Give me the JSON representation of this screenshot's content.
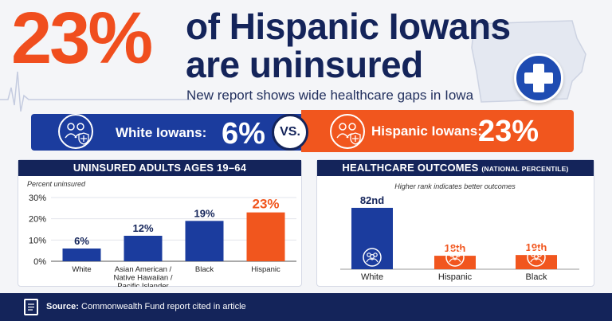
{
  "header": {
    "big_pct": "23%",
    "headline_line1": "of Hispanic Iowans",
    "headline_line2": "are uninsured",
    "subhead": "New report shows wide healthcare gaps in Iowa"
  },
  "comparison": {
    "white_label": "White Iowans:",
    "white_value": "6%",
    "vs": "VS.",
    "hispanic_label": "Hispanic Iowans:",
    "hispanic_value": "23%"
  },
  "colors": {
    "navy": "#14245a",
    "blue": "#1b3c9e",
    "orange": "#f1561e",
    "headline_orange": "#f04e1e"
  },
  "icons": [
    "heartbeat-icon",
    "iowa-map-icon",
    "medical-cross-icon",
    "people-shield-icon",
    "people-group-icon",
    "document-icon"
  ],
  "chart_data": [
    {
      "type": "bar",
      "title": "UNINSURED ADULTS AGES 19–64",
      "ylabel": "Percent uninsured",
      "categories": [
        "White",
        "Asian American / Native Hawaiian / Pacific Islander",
        "Black",
        "Hispanic"
      ],
      "category_lines": [
        [
          "White"
        ],
        [
          "Asian American /",
          "Native Hawaiian /",
          "Pacific Islander"
        ],
        [
          "Black"
        ],
        [
          "Hispanic"
        ]
      ],
      "values": [
        6,
        12,
        19,
        23
      ],
      "value_labels": [
        "6%",
        "12%",
        "19%",
        "23%"
      ],
      "bar_colors": [
        "#1b3c9e",
        "#1b3c9e",
        "#1b3c9e",
        "#f1561e"
      ],
      "yticks": [
        "0%",
        "10%",
        "20%",
        "30%"
      ],
      "ylim": [
        0,
        30
      ],
      "grid": true
    },
    {
      "type": "bar",
      "title": "HEALTHCARE OUTCOMES",
      "title_suffix": "(NATIONAL PERCENTILE)",
      "subtitle": "Higher rank indicates better outcomes",
      "categories": [
        "White",
        "Hispanic",
        "Black"
      ],
      "values": [
        82,
        18,
        19
      ],
      "value_labels": [
        "82nd",
        "18th",
        "19th"
      ],
      "bar_colors": [
        "#1b3c9e",
        "#f1561e",
        "#f1561e"
      ],
      "ylim": [
        0,
        100
      ],
      "grid": false
    }
  ],
  "footer": {
    "source_label": "Source:",
    "source_text": "Commonwealth Fund report cited in article"
  }
}
